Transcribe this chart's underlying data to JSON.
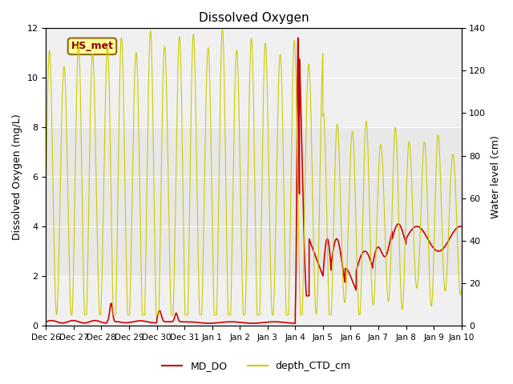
{
  "title": "Dissolved Oxygen",
  "ylabel_left": "Dissolved Oxygen (mg/L)",
  "ylabel_right": "Water level (cm)",
  "ylim_left": [
    0,
    12
  ],
  "ylim_right": [
    0,
    140
  ],
  "annotation_text": "HS_met",
  "annotation_color": "#8B0000",
  "annotation_bg": "#FFFF99",
  "background_band_color": "#E8E8E8",
  "background_band_ymin": 2,
  "background_band_ymax": 8,
  "legend_items": [
    "MD_DO",
    "depth_CTD_cm"
  ],
  "legend_colors": [
    "#CC0000",
    "#CCCC00"
  ],
  "x_tick_labels": [
    "Dec 26",
    "Dec 27",
    "Dec 28",
    "Dec 29",
    "Dec 30",
    "Dec 31",
    "Jan 1",
    "Jan 2",
    "Jan 3",
    "Jan 4",
    "Jan 5",
    "Jan 6",
    "Jan 7",
    "Jan 8",
    "Jan 9",
    "Jan 10"
  ],
  "x_ticks": [
    0,
    1,
    2,
    3,
    4,
    5,
    6,
    7,
    8,
    9,
    10,
    11,
    12,
    13,
    14,
    15
  ],
  "xlim": [
    0,
    15
  ],
  "yticks_left": [
    0,
    2,
    4,
    6,
    8,
    10,
    12
  ],
  "yticks_right": [
    0,
    20,
    40,
    60,
    80,
    100,
    120,
    140
  ]
}
